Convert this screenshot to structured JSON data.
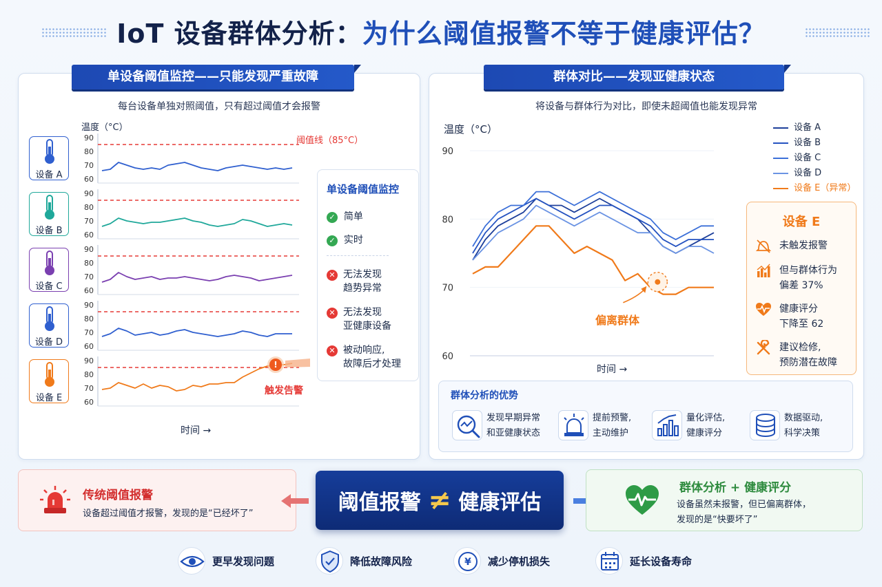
{
  "title": {
    "part1": "IoT 设备群体分析：",
    "part2": "为什么阈值报警不等于健康评估？"
  },
  "left_panel": {
    "ribbon": "单设备阈值监控——只能发现严重故障",
    "subtitle": "每台设备单独对照阈值，只有超过阈值才会报警",
    "axis_label": "温度（°C）",
    "x_label": "时间 →",
    "threshold_label": "阈值线（85°C）",
    "alarm_label": "触发告警",
    "devices": [
      {
        "label": "设备 A",
        "color": "#2f5fcf"
      },
      {
        "label": "设备 B",
        "color": "#1fa89a"
      },
      {
        "label": "设备 C",
        "color": "#7a3fb0"
      },
      {
        "label": "设备 D",
        "color": "#2f5fcf"
      },
      {
        "label": "设备 E",
        "color": "#f07a1a"
      }
    ],
    "ticks": [
      "90",
      "80",
      "70",
      "60"
    ],
    "legend": {
      "title": "单设备阈值监控",
      "pros": [
        "简单",
        "实时"
      ],
      "cons": [
        [
          "无法发现",
          "趋势异常"
        ],
        [
          "无法发现",
          "亚健康设备"
        ],
        [
          "被动响应,",
          "故障后才处理"
        ]
      ]
    }
  },
  "chart_data": [
    {
      "type": "line",
      "title": "",
      "ylabel": "温度（°C）",
      "xlabel": "时间 →",
      "ylim": [
        60,
        90
      ],
      "threshold": 85,
      "x": [
        1,
        2,
        3,
        4,
        5,
        6,
        7,
        8,
        9,
        10,
        11,
        12,
        13,
        14,
        15,
        16,
        17,
        18,
        19,
        20,
        21,
        22,
        23,
        24
      ],
      "series": [
        {
          "name": "设备 A",
          "values": [
            66,
            67,
            72,
            70,
            68,
            67,
            68,
            67,
            70,
            71,
            72,
            70,
            68,
            67,
            66,
            68,
            69,
            70,
            69,
            68,
            67,
            68,
            67,
            68
          ]
        },
        {
          "name": "设备 B",
          "values": [
            66,
            68,
            72,
            70,
            69,
            68,
            69,
            69,
            70,
            71,
            72,
            70,
            69,
            67,
            66,
            67,
            68,
            71,
            70,
            68,
            66,
            67,
            68,
            67
          ]
        },
        {
          "name": "设备 C",
          "values": [
            66,
            68,
            73,
            70,
            68,
            69,
            70,
            68,
            69,
            69,
            70,
            69,
            68,
            67,
            68,
            70,
            71,
            70,
            69,
            67,
            68,
            69,
            70,
            71
          ]
        },
        {
          "name": "设备 D",
          "values": [
            67,
            69,
            73,
            71,
            68,
            69,
            70,
            68,
            69,
            71,
            72,
            70,
            69,
            68,
            67,
            68,
            69,
            71,
            70,
            68,
            67,
            69,
            69,
            69
          ]
        },
        {
          "name": "设备 E",
          "values": [
            69,
            70,
            74,
            72,
            70,
            73,
            70,
            72,
            71,
            68,
            69,
            72,
            71,
            73,
            73,
            74,
            74,
            78,
            81,
            84,
            86,
            87,
            87,
            88
          ]
        }
      ]
    },
    {
      "type": "line",
      "title": "",
      "ylabel": "温度（°C）",
      "xlabel": "时间 →",
      "ylim": [
        60,
        90
      ],
      "x": [
        1,
        2,
        3,
        4,
        5,
        6,
        7,
        8,
        9,
        10,
        11,
        12,
        13,
        14,
        15,
        16,
        17,
        18,
        19,
        20
      ],
      "series": [
        {
          "name": "设备 A",
          "values": [
            74,
            77,
            79,
            80,
            81,
            83,
            82,
            82,
            81,
            82,
            83,
            82,
            81,
            80,
            78,
            76,
            75,
            76,
            77,
            78
          ]
        },
        {
          "name": "设备 B",
          "values": [
            75,
            78,
            80,
            81,
            82,
            83,
            82,
            81,
            80,
            81,
            82,
            82,
            81,
            80,
            79,
            77,
            76,
            77,
            77,
            77
          ]
        },
        {
          "name": "设备 C",
          "values": [
            76,
            79,
            81,
            82,
            82,
            84,
            84,
            83,
            82,
            83,
            84,
            83,
            82,
            81,
            80,
            78,
            77,
            78,
            79,
            79
          ]
        },
        {
          "name": "设备 D",
          "values": [
            74,
            76,
            78,
            79,
            80,
            82,
            81,
            80,
            79,
            80,
            81,
            80,
            79,
            78,
            78,
            76,
            75,
            76,
            76,
            75
          ]
        },
        {
          "name": "设备 E（异常）",
          "values": [
            72,
            73,
            73,
            75,
            77,
            79,
            79,
            77,
            75,
            76,
            75,
            74,
            71,
            72,
            70,
            69,
            69,
            70,
            70,
            70
          ]
        }
      ]
    }
  ],
  "right_panel": {
    "ribbon": "群体对比——发现亚健康状态",
    "subtitle": "将设备与群体行为对比，即使未超阈值也能发现异常",
    "axis_label": "温度（°C）",
    "x_label": "时间 →",
    "ticks": [
      "90",
      "80",
      "70",
      "60"
    ],
    "deviation_label": "偏离群体",
    "legend": [
      {
        "label": "设备 A",
        "color": "#1d3f9a"
      },
      {
        "label": "设备 B",
        "color": "#2452c0"
      },
      {
        "label": "设备 C",
        "color": "#3b6fd8"
      },
      {
        "label": "设备 D",
        "color": "#6a93e3"
      },
      {
        "label": "设备 E（异常）",
        "color": "#f07a1a"
      }
    ],
    "device_e": {
      "title": "设备 E",
      "items": [
        {
          "icon": "bell-off-icon",
          "lines": [
            "未触发报警"
          ]
        },
        {
          "icon": "bar-chart-icon",
          "lines": [
            "但与群体行为",
            "偏差 37%"
          ]
        },
        {
          "icon": "heart-pulse-icon",
          "lines": [
            "健康评分",
            "下降至 62"
          ]
        },
        {
          "icon": "wrench-icon",
          "lines": [
            "建议检修,",
            "预防潜在故障"
          ]
        }
      ]
    },
    "advantages": {
      "title": "群体分析的优势",
      "items": [
        {
          "icon": "trend-magnifier-icon",
          "lines": [
            "发现早期异常",
            "和亚健康状态"
          ]
        },
        {
          "icon": "siren-icon",
          "lines": [
            "提前预警,",
            "主动维护"
          ]
        },
        {
          "icon": "chart-growth-icon",
          "lines": [
            "量化评估,",
            "健康评分"
          ]
        },
        {
          "icon": "database-icon",
          "lines": [
            "数据驱动,",
            "科学决策"
          ]
        }
      ]
    }
  },
  "bottom": {
    "left_title": "传统阈值报警",
    "left_desc": "设备超过阈值才报警，发现的是“已经坏了”",
    "center_left": "阈值报警",
    "center_symbol": "≠",
    "center_right": "健康评估",
    "right_title": "群体分析 + 健康评分",
    "right_desc1": "设备虽然未报警，但已偏离群体，",
    "right_desc2": "发现的是“快要坏了”"
  },
  "footer": [
    {
      "icon": "eye-icon",
      "label": "更早发现问题"
    },
    {
      "icon": "shield-icon",
      "label": "降低故障风险"
    },
    {
      "icon": "yen-coin-icon",
      "label": "减少停机损失"
    },
    {
      "icon": "calendar-icon",
      "label": "延长设备寿命"
    }
  ],
  "colors": {
    "primary": "#1f4fb8",
    "alarm": "#e53935",
    "abnormal": "#f07a1a",
    "healthy": "#2e9b46"
  }
}
